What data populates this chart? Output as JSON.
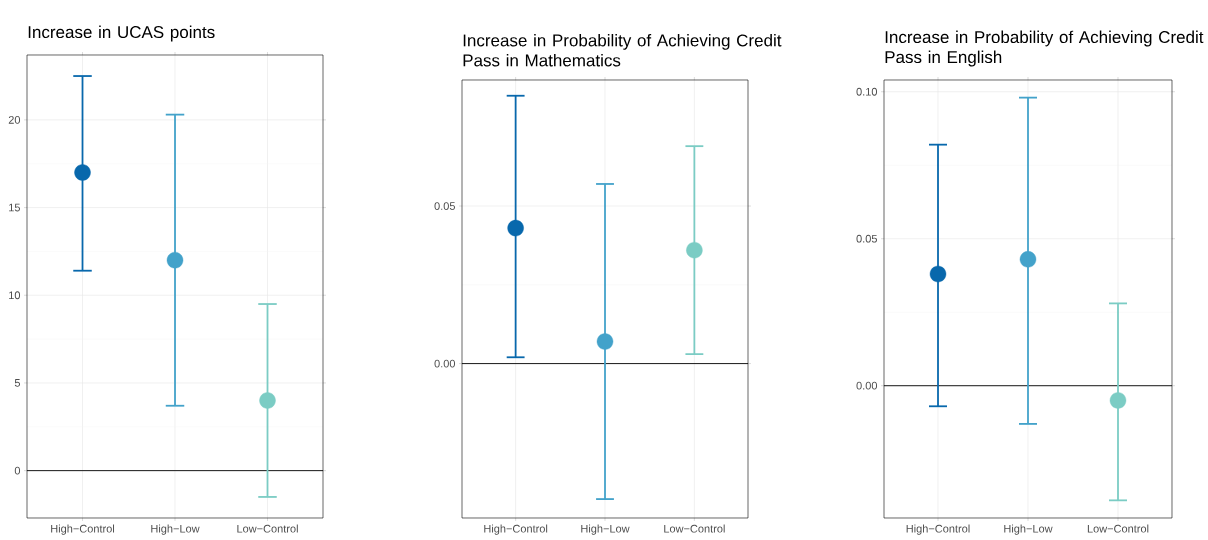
{
  "chart_data": [
    {
      "type": "scatter",
      "title": "Increase in UCAS points",
      "categories": [
        "High−Control",
        "High−Low",
        "Low−Control"
      ],
      "values": [
        17,
        12,
        4
      ],
      "errors": [
        [
          11.4,
          22.5
        ],
        [
          3.7,
          20.3
        ],
        [
          -1.5,
          9.5
        ]
      ],
      "colors": [
        "#0868ac",
        "#43a2ca",
        "#7bccc4"
      ],
      "ylim": [
        -2.7,
        23.7
      ],
      "yticks": [
        0,
        5,
        10,
        15,
        20
      ],
      "grid": true,
      "marker": "circle",
      "ref_lines": [
        {
          "axis": "y",
          "value": 0
        }
      ]
    },
    {
      "type": "scatter",
      "title": "Increase in Probability of Achieving Credit Pass in Mathematics",
      "categories": [
        "High−Control",
        "High−Low",
        "Low−Control"
      ],
      "values": [
        0.043,
        0.007,
        0.036
      ],
      "errors": [
        [
          0.002,
          0.085
        ],
        [
          -0.043,
          0.057
        ],
        [
          0.003,
          0.069
        ]
      ],
      "colors": [
        "#0868ac",
        "#43a2ca",
        "#7bccc4"
      ],
      "ylim": [
        -0.049,
        0.09
      ],
      "yticks": [
        {
          "value": 0,
          "label": "0.00"
        },
        {
          "value": 0.05,
          "label": "0.05"
        }
      ],
      "grid": true,
      "marker": "circle",
      "ref_lines": [
        {
          "axis": "y",
          "value": 0
        }
      ]
    },
    {
      "type": "scatter",
      "title": "Increase in Probability of Achieving Credit Pass in English",
      "categories": [
        "High−Control",
        "High−Low",
        "Low−Control"
      ],
      "values": [
        0.038,
        0.043,
        -0.005
      ],
      "errors": [
        [
          -0.007,
          0.082
        ],
        [
          -0.013,
          0.098
        ],
        [
          -0.039,
          0.028
        ]
      ],
      "colors": [
        "#0868ac",
        "#43a2ca",
        "#7bccc4"
      ],
      "ylim": [
        -0.045,
        0.104
      ],
      "yticks": [
        {
          "value": 0,
          "label": "0.00"
        },
        {
          "value": 0.05,
          "label": "0.05"
        },
        {
          "value": 0.1,
          "label": "0.10"
        }
      ],
      "grid": true,
      "marker": "circle",
      "ref_lines": [
        {
          "axis": "y",
          "value": 0
        }
      ]
    }
  ]
}
